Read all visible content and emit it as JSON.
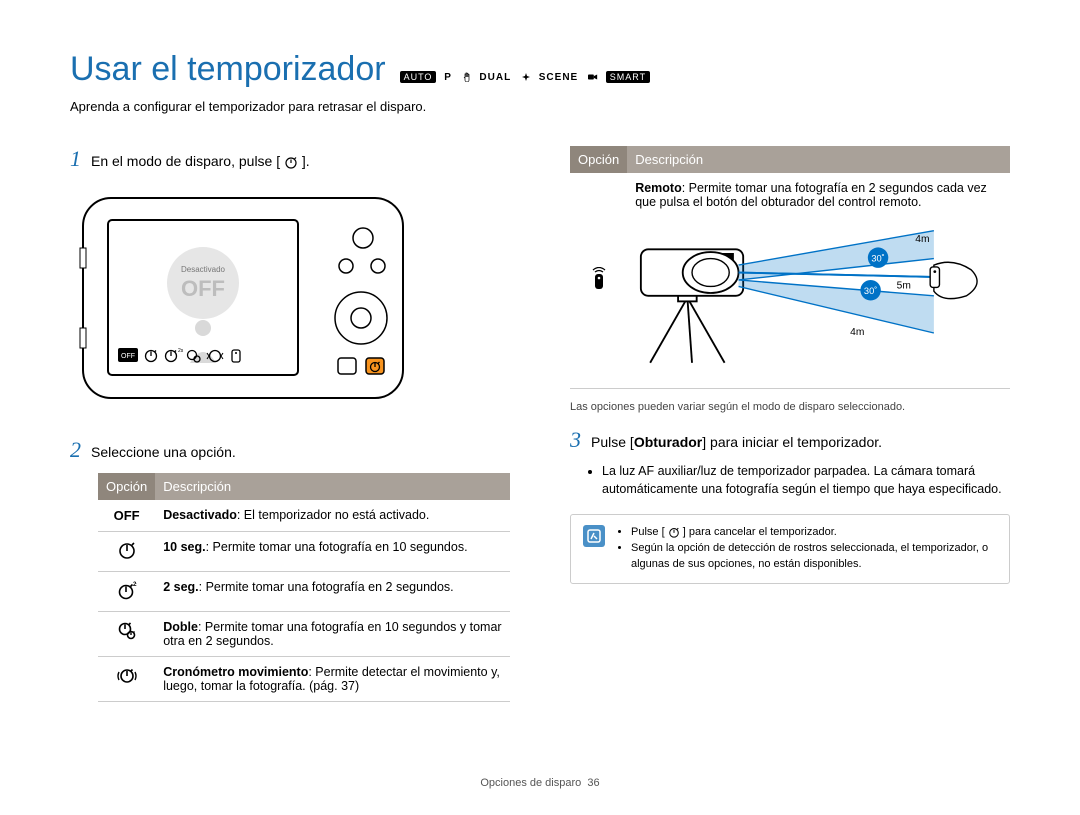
{
  "colors": {
    "title": "#1a6fb0",
    "step_num": "#1a6fb0",
    "table_header_bg": "#a9a199",
    "table_header_opt_bg": "#8f867c",
    "tip_icon_bg": "#4a90c7",
    "border": "#cccccc",
    "text": "#000000",
    "diagram_blue": "#0072c6",
    "camera_highlight": "#f7931e"
  },
  "title": "Usar el temporizador",
  "modes": {
    "auto_badge": "AUTO",
    "p": "P",
    "dual": "DUAL",
    "scene": "SCENE",
    "smart_badge": "SMART"
  },
  "subtitle": "Aprenda a configurar el temporizador para retrasar el disparo.",
  "step1": {
    "num": "1",
    "text_before": "En el modo de disparo, pulse [",
    "text_after": "].",
    "camera_screen_label": "Desactivado",
    "camera_screen_off": "OFF"
  },
  "step2": {
    "num": "2",
    "text": "Seleccione una opción.",
    "table": {
      "header_option": "Opción",
      "header_desc": "Descripción",
      "rows": [
        {
          "icon": "off",
          "bold": "Desactivado",
          "rest": ": El temporizador no está activado."
        },
        {
          "icon": "t10",
          "bold": "10 seg.",
          "rest": ": Permite tomar una fotografía en 10 segundos."
        },
        {
          "icon": "t2",
          "bold": "2 seg.",
          "rest": ": Permite tomar una fotografía en 2 segundos."
        },
        {
          "icon": "double",
          "bold": "Doble",
          "rest": ": Permite tomar una fotografía en 10 segundos y tomar otra en 2 segundos."
        },
        {
          "icon": "motion",
          "bold": "Cronómetro movimiento",
          "rest": ": Permite detectar el movimiento y, luego, tomar la fotografía. (pág. 37)"
        }
      ]
    }
  },
  "right_table": {
    "header_option": "Opción",
    "header_desc": "Descripción",
    "row": {
      "icon": "remote",
      "bold": "Remoto",
      "rest": ": Permite tomar una fotografía en 2 segundos cada vez que pulsa el botón del obturador del control remoto."
    },
    "diagram": {
      "dist_4m_top": "4m",
      "dist_5m": "5m",
      "dist_4m_bottom": "4m",
      "angle": "30˚"
    }
  },
  "right_note": "Las opciones pueden variar según el modo de disparo seleccionado.",
  "step3": {
    "num": "3",
    "text_before": "Pulse [",
    "obturador": "Obturador",
    "text_after": "] para iniciar el temporizador.",
    "bullet": "La luz AF auxiliar/luz de temporizador parpadea. La cámara tomará automáticamente una fotografía según el tiempo que haya especificado."
  },
  "tip": {
    "line1_before": "Pulse [",
    "line1_after": "] para cancelar el temporizador.",
    "line2": "Según la opción de detección de rostros seleccionada, el temporizador, o algunas de sus opciones, no están disponibles."
  },
  "footer": {
    "section": "Opciones de disparo",
    "page": "36"
  }
}
